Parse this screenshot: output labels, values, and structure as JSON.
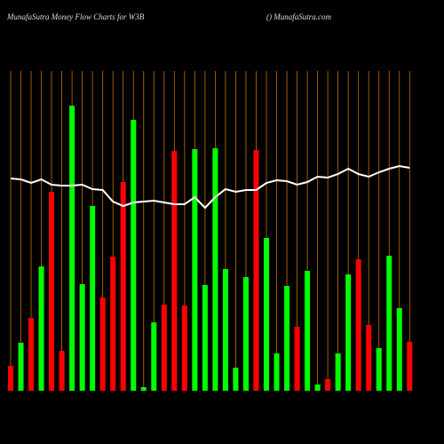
{
  "chart_data": {
    "type": "bar",
    "title": "MunafaSutra  Money Flow  Charts for W3B",
    "subtitle": "() MunafaSutra.com",
    "categories": [
      null,
      null,
      null,
      null,
      null,
      null,
      null,
      null,
      null,
      null,
      null,
      null,
      null,
      null,
      null,
      null,
      null,
      null,
      null,
      null,
      null,
      null,
      null,
      null,
      null,
      null,
      null,
      null,
      null,
      null,
      null,
      null,
      null,
      null,
      null,
      null,
      null,
      null,
      null,
      null
    ],
    "series": [
      {
        "values": [
          28,
          54,
          82,
          140,
          224,
          45,
          321,
          120,
          208,
          105,
          151,
          235,
          305,
          4,
          77,
          97,
          270,
          96,
          272,
          119,
          273,
          137,
          26,
          128,
          271,
          172,
          42,
          118,
          72,
          135,
          7,
          13,
          42,
          131,
          148,
          74,
          48,
          152,
          93,
          55
        ],
        "colors": [
          "#ff0000",
          "#00ff00",
          "#ff0000",
          "#00ff00",
          "#ff0000",
          "#ff0000",
          "#00ff00",
          "#00ff00",
          "#00ff00",
          "#ff0000",
          "#ff0000",
          "#ff0000",
          "#00ff00",
          "#00ff00",
          "#00ff00",
          "#ff0000",
          "#ff0000",
          "#ff0000",
          "#00ff00",
          "#00ff00",
          "#00ff00",
          "#00ff00",
          "#00ff00",
          "#00ff00",
          "#ff0000",
          "#00ff00",
          "#00ff00",
          "#00ff00",
          "#ff0000",
          "#00ff00",
          "#00ff00",
          "#ff0000",
          "#00ff00",
          "#00ff00",
          "#ff0000",
          "#ff0000",
          "#00ff00",
          "#00ff00",
          "#00ff00",
          "#ff0000"
        ]
      },
      {
        "type": "line",
        "color": "#ffffff",
        "values": [
          239,
          238,
          234,
          238,
          232,
          231,
          231,
          232,
          227,
          226,
          213,
          208,
          212,
          213,
          214,
          212,
          210,
          210,
          218,
          206,
          218,
          227,
          224,
          226,
          226,
          234,
          237,
          236,
          232,
          235,
          241,
          240,
          244,
          250,
          244,
          241,
          246,
          250,
          253,
          251
        ]
      }
    ],
    "ylim": [
      0,
      360
    ],
    "grid_color": "#c87000"
  }
}
